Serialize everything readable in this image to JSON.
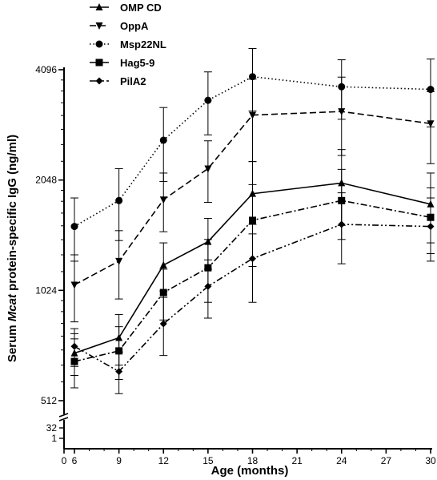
{
  "chart_data": {
    "type": "line",
    "xlabel": "Age (months)",
    "ylabel_parts": [
      "Serum ",
      "Mcat",
      " protein-specific IgG (ng/ml)"
    ],
    "scale_y": "log2 with broken axis",
    "x_ticks": [
      "0",
      "6",
      "9",
      "12",
      "15",
      "18",
      "21",
      "24",
      "27",
      "30"
    ],
    "y_ticks_main": [
      "512",
      "1024",
      "2048",
      "4096"
    ],
    "y_ticks_lower": [
      "1",
      "32"
    ],
    "x": [
      6,
      9,
      12,
      15,
      18,
      24,
      30
    ],
    "legend_position": "top-left",
    "series": [
      {
        "name": "OMP CD",
        "marker": "triangle-up",
        "dash": "solid",
        "values": [
          690,
          760,
          1200,
          1390,
          1880,
          2010,
          1760
        ],
        "errors": [
          90,
          120,
          180,
          220,
          420,
          470,
          380
        ]
      },
      {
        "name": "OppA",
        "marker": "triangle-down",
        "dash": "dash",
        "values": [
          1060,
          1230,
          1810,
          2200,
          3080,
          3150,
          2920
        ],
        "errors": [
          220,
          260,
          330,
          420,
          780,
          760,
          650
        ]
      },
      {
        "name": "Msp22NL",
        "marker": "circle",
        "dash": "dot",
        "values": [
          1530,
          1800,
          2630,
          3380,
          3920,
          3680,
          3620
        ],
        "errors": [
          300,
          400,
          600,
          660,
          760,
          680,
          760
        ]
      },
      {
        "name": "Hag5-9",
        "marker": "square",
        "dash": "dashdot",
        "values": [
          655,
          700,
          1010,
          1180,
          1590,
          1800,
          1620
        ],
        "errors": [
          100,
          115,
          160,
          230,
          400,
          390,
          330
        ]
      },
      {
        "name": "PilA2",
        "marker": "diamond",
        "dash": "dashdotdot",
        "values": [
          720,
          615,
          830,
          1050,
          1250,
          1550,
          1530
        ],
        "errors": [
          85,
          80,
          150,
          190,
          300,
          340,
          300
        ]
      }
    ]
  }
}
